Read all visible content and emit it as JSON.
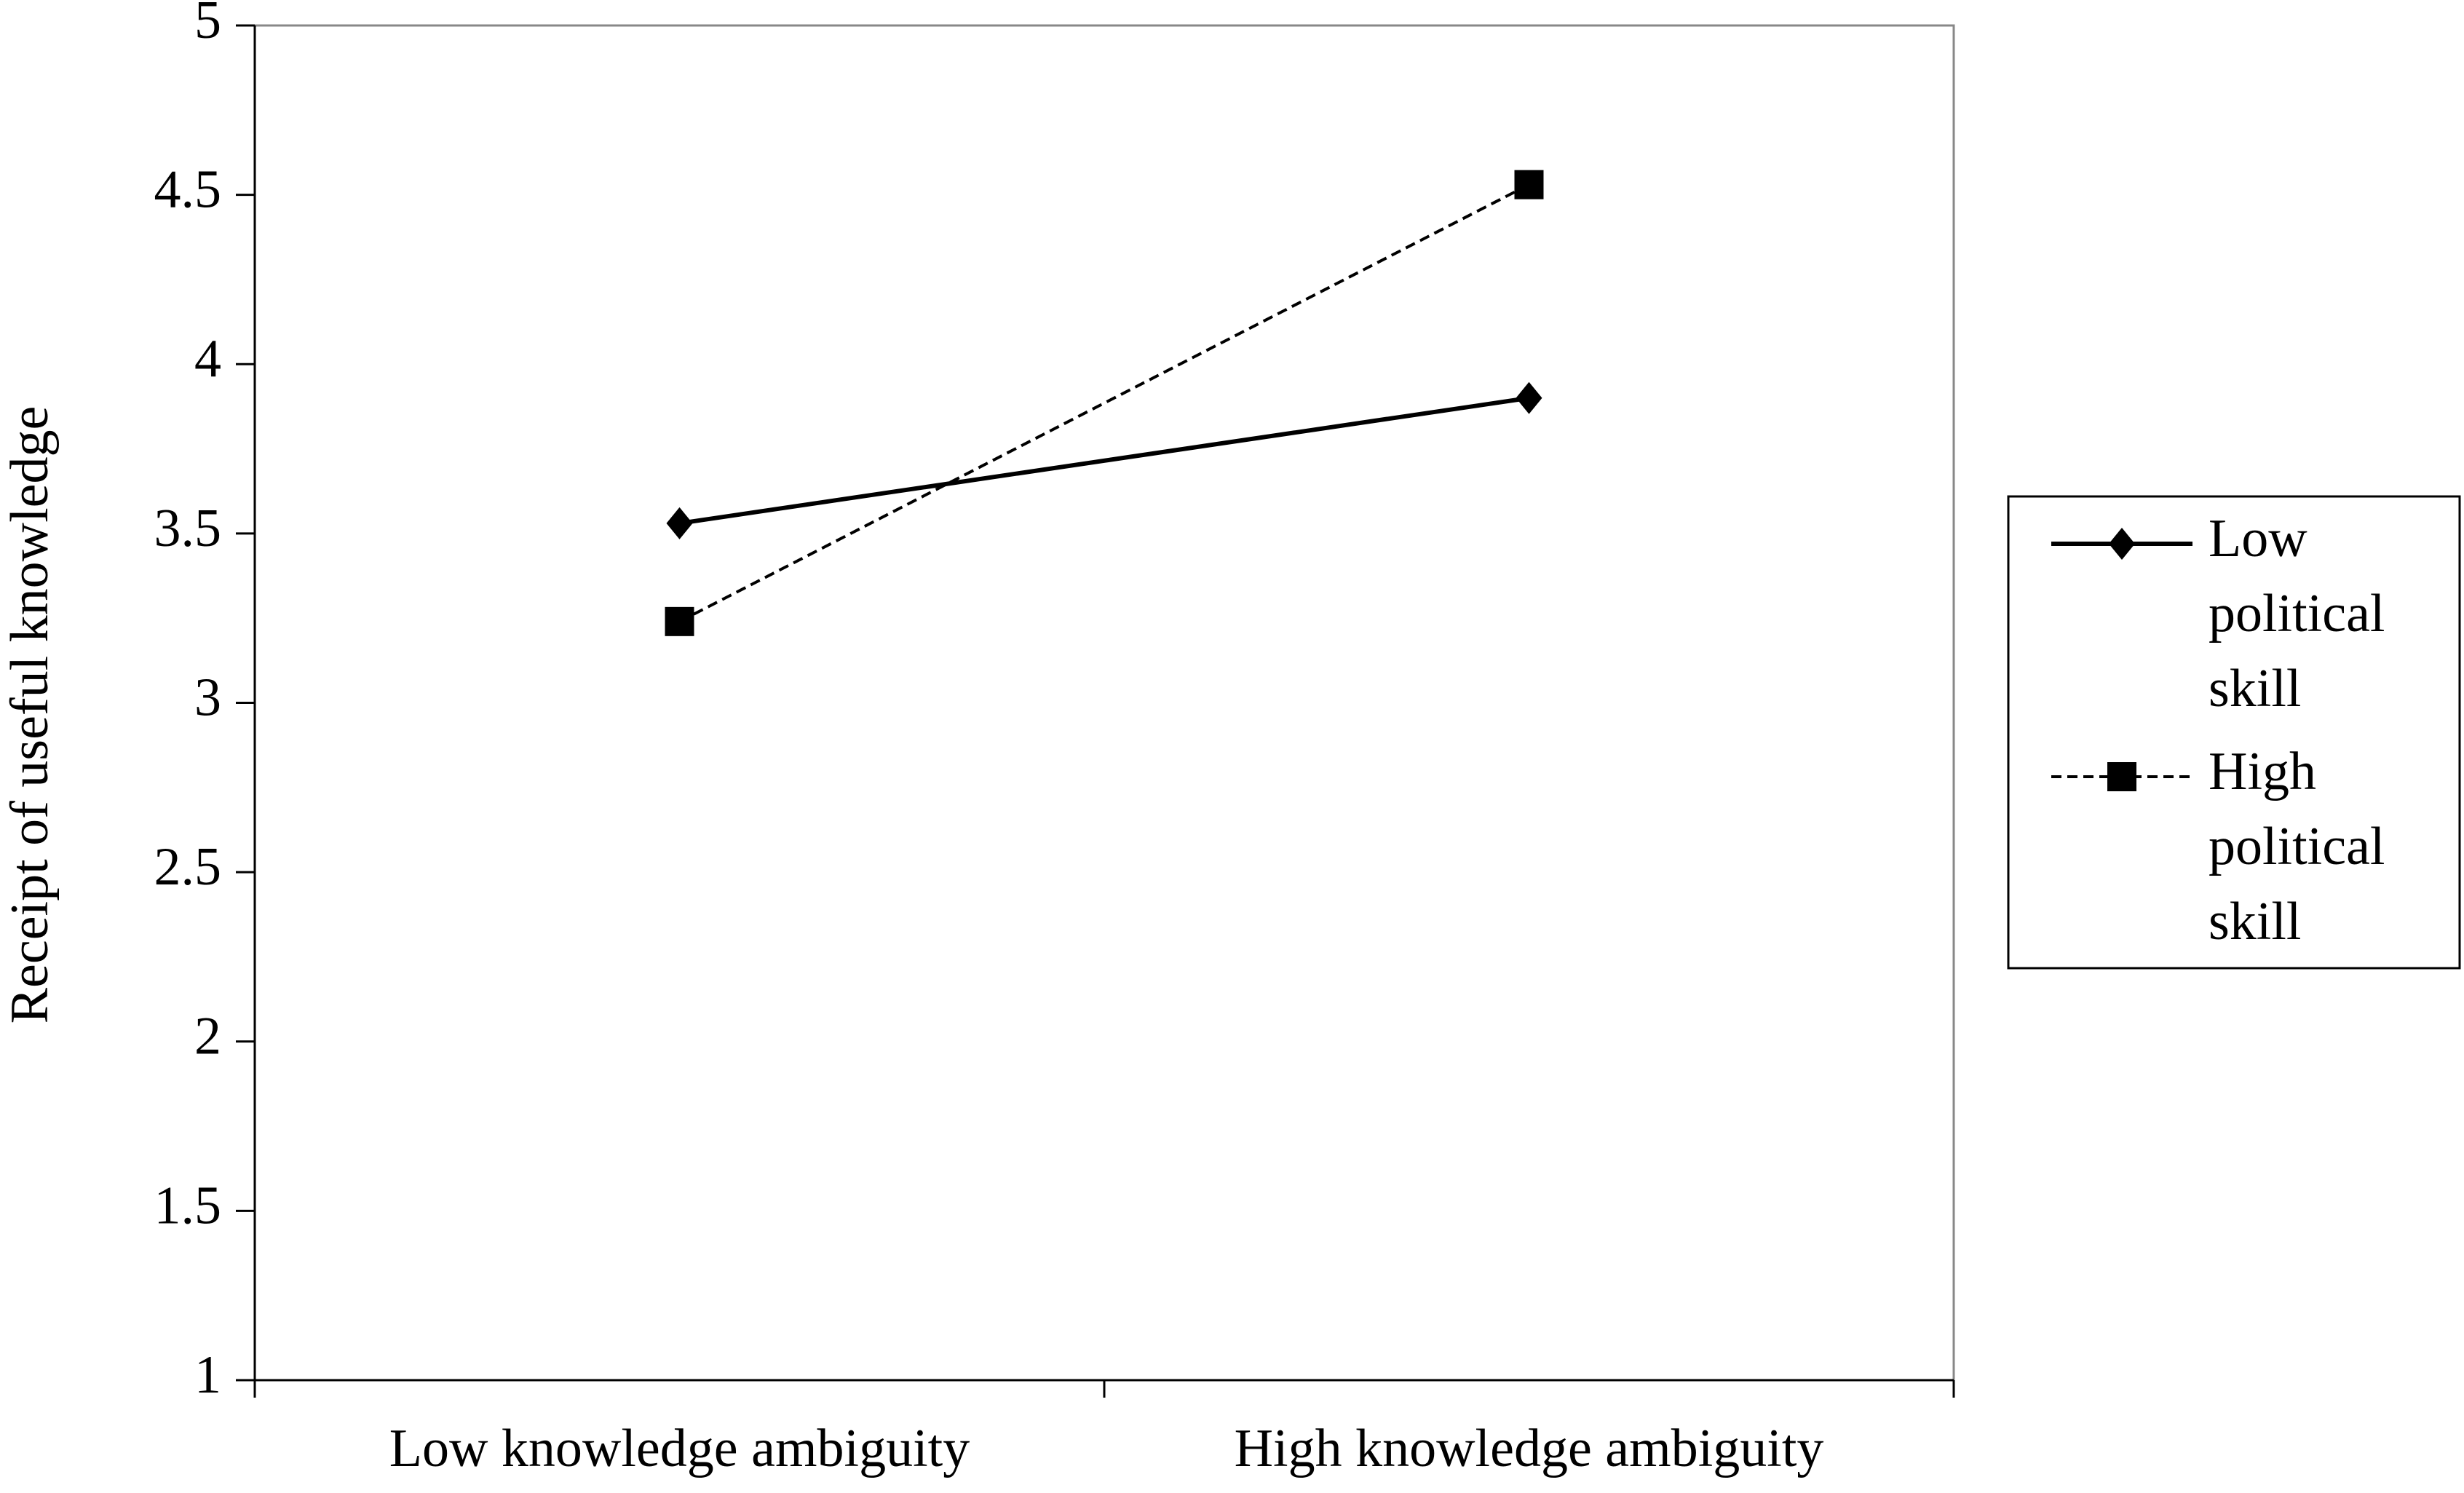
{
  "chart_data": {
    "type": "line",
    "y_label": "Receipt of useful knowledge",
    "categories": [
      "Low knowledge ambiguity",
      "High knowledge ambiguity"
    ],
    "series": [
      {
        "name": "Low political skill",
        "color": "#000000",
        "marker": "diamond",
        "linestyle": "solid",
        "values": [
          3.53,
          3.9
        ]
      },
      {
        "name": "High political skill",
        "color": "#000000",
        "marker": "square",
        "linestyle": "dashed",
        "values": [
          3.24,
          4.53
        ]
      }
    ],
    "ylim": [
      1,
      5
    ],
    "yticks": [
      1,
      {
        "value": 1.5,
        "label": "1.5"
      },
      2,
      {
        "value": 2.5,
        "label": "2.5"
      },
      3,
      {
        "value": 3.5,
        "label": "3.5"
      },
      4,
      {
        "value": 4.5,
        "label": "4.5"
      },
      5
    ],
    "grid": false,
    "legend": "right"
  }
}
